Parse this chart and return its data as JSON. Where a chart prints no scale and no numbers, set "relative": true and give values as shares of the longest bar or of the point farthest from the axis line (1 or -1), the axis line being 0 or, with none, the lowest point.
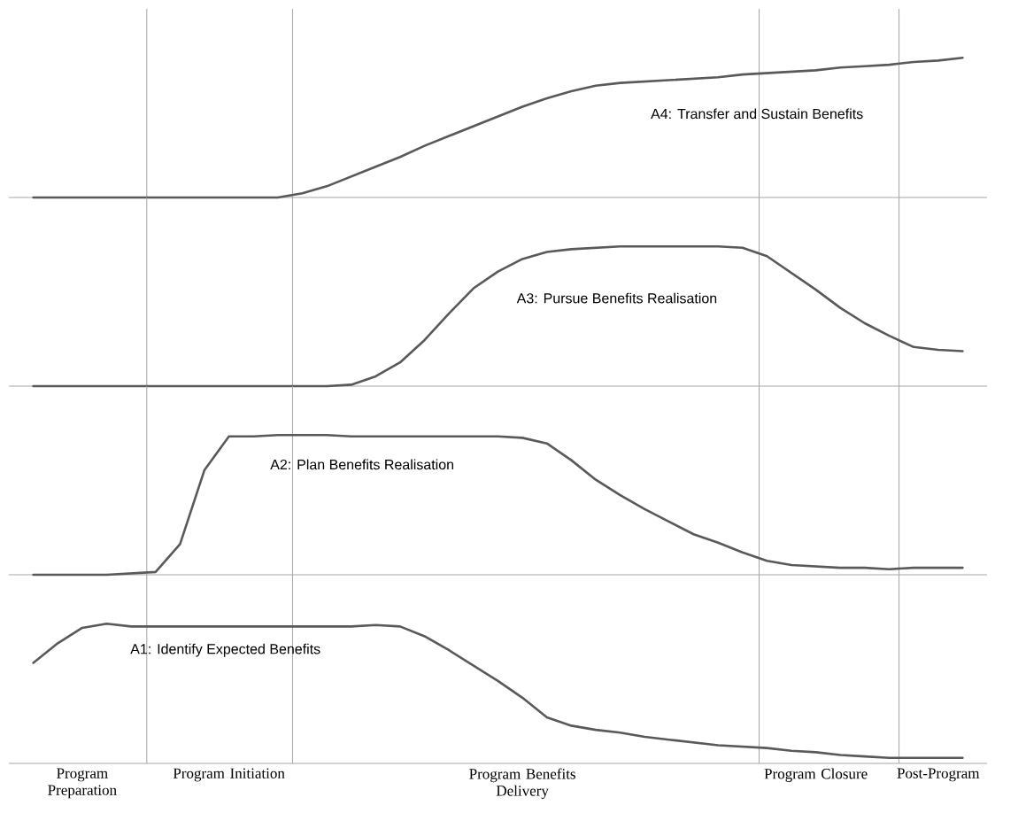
{
  "chart_data": [
    {
      "type": "line",
      "relative": true,
      "categories": [
        null,
        null,
        null,
        null,
        null,
        null,
        null,
        null,
        null,
        null,
        null,
        null,
        null,
        null,
        null,
        null,
        null,
        null,
        null,
        null,
        null,
        null,
        null,
        null,
        null,
        null,
        null,
        null,
        null,
        null,
        null,
        null,
        null,
        null,
        null,
        null,
        null,
        null,
        null
      ],
      "series": [
        {
          "name": "A4: Transfer and Sustain Benefits",
          "color": "#595959",
          "values": [
            0,
            0,
            0,
            0,
            0,
            0,
            0,
            0,
            0,
            0,
            0,
            0.03,
            0.08,
            0.15,
            0.22,
            0.29,
            0.37,
            0.44,
            0.51,
            0.58,
            0.65,
            0.71,
            0.76,
            0.8,
            0.82,
            0.83,
            0.84,
            0.85,
            0.86,
            0.88,
            0.89,
            0.9,
            0.91,
            0.93,
            0.94,
            0.95,
            0.97,
            0.98,
            1
          ]
        }
      ]
    },
    {
      "type": "line",
      "relative": true,
      "categories": [
        null,
        null,
        null,
        null,
        null,
        null,
        null,
        null,
        null,
        null,
        null,
        null,
        null,
        null,
        null,
        null,
        null,
        null,
        null,
        null,
        null,
        null,
        null,
        null,
        null,
        null,
        null,
        null,
        null,
        null,
        null,
        null,
        null,
        null,
        null,
        null,
        null,
        null,
        null
      ],
      "series": [
        {
          "name": "A3: Pursue Benefits Realisation",
          "color": "#595959",
          "values": [
            0,
            0,
            0,
            0,
            0,
            0,
            0,
            0,
            0,
            0,
            0,
            0,
            0,
            0.01,
            0.07,
            0.17,
            0.33,
            0.52,
            0.7,
            0.82,
            0.91,
            0.96,
            0.98,
            0.99,
            1,
            1,
            1,
            1,
            1,
            0.99,
            0.93,
            0.81,
            0.69,
            0.56,
            0.45,
            0.36,
            0.28,
            0.26,
            0.25
          ]
        }
      ]
    },
    {
      "type": "line",
      "relative": true,
      "categories": [
        null,
        null,
        null,
        null,
        null,
        null,
        null,
        null,
        null,
        null,
        null,
        null,
        null,
        null,
        null,
        null,
        null,
        null,
        null,
        null,
        null,
        null,
        null,
        null,
        null,
        null,
        null,
        null,
        null,
        null,
        null,
        null,
        null,
        null,
        null,
        null,
        null,
        null,
        null
      ],
      "series": [
        {
          "name": "A2: Plan Benefits Realisation",
          "color": "#595959",
          "values": [
            0,
            0,
            0,
            0,
            0.01,
            0.02,
            0.22,
            0.75,
            0.99,
            0.99,
            1,
            1,
            1,
            0.99,
            0.99,
            0.99,
            0.99,
            0.99,
            0.99,
            0.99,
            0.98,
            0.94,
            0.82,
            0.68,
            0.57,
            0.47,
            0.38,
            0.29,
            0.23,
            0.16,
            0.1,
            0.07,
            0.06,
            0.05,
            0.05,
            0.04,
            0.05,
            0.05,
            0.05
          ]
        }
      ]
    },
    {
      "type": "line",
      "relative": true,
      "categories": [
        null,
        null,
        "Program Preparation",
        null,
        null,
        null,
        null,
        null,
        "Program Initiation",
        null,
        null,
        null,
        null,
        null,
        null,
        null,
        null,
        null,
        null,
        null,
        "Program Benefits Delivery",
        null,
        null,
        null,
        null,
        null,
        null,
        null,
        null,
        null,
        null,
        null,
        "Program Closure",
        null,
        null,
        null,
        null,
        "Post-Program",
        null
      ],
      "series": [
        {
          "name": "A1: Identify Expected Benefits",
          "color": "#595959",
          "values": [
            0.72,
            0.86,
            0.97,
            1,
            0.98,
            0.98,
            0.98,
            0.98,
            0.98,
            0.98,
            0.98,
            0.98,
            0.98,
            0.98,
            0.99,
            0.98,
            0.91,
            0.81,
            0.7,
            0.59,
            0.47,
            0.33,
            0.27,
            0.24,
            0.22,
            0.19,
            0.17,
            0.15,
            0.13,
            0.12,
            0.11,
            0.09,
            0.08,
            0.06,
            0.05,
            0.04,
            0.04,
            0.04,
            0.04
          ]
        }
      ]
    }
  ]
}
